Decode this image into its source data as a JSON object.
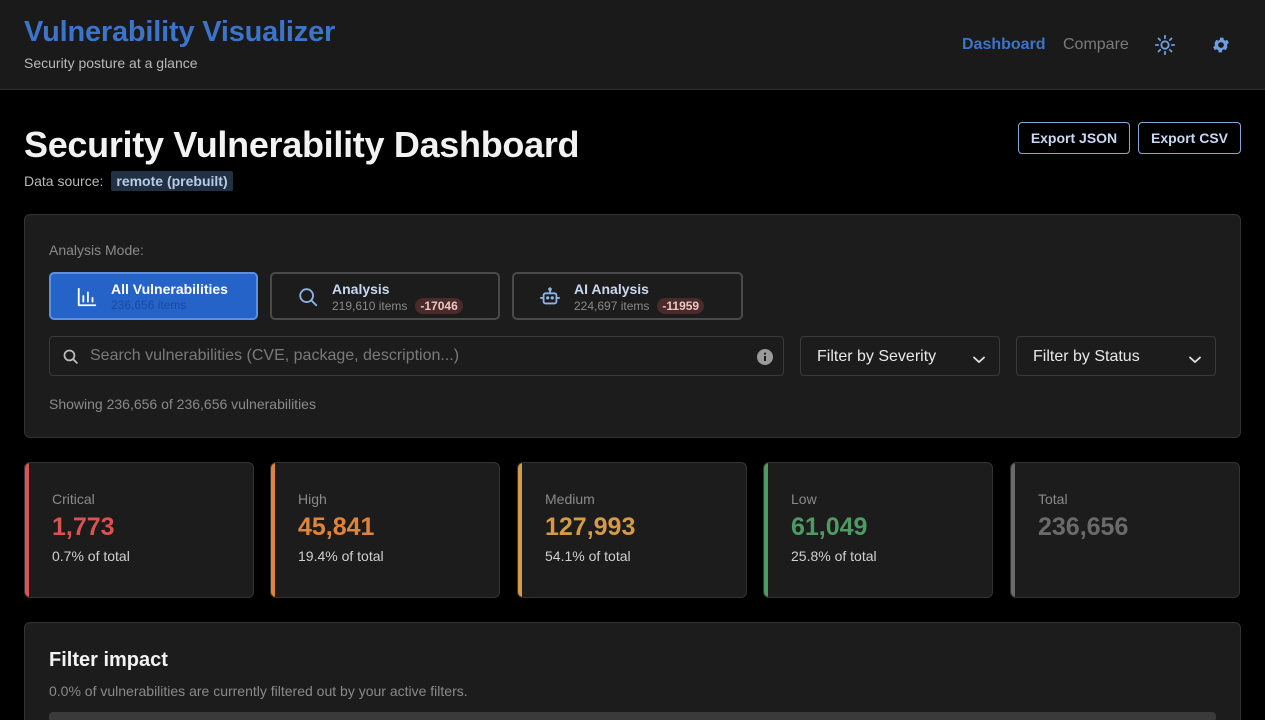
{
  "header": {
    "title": "Vulnerability Visualizer",
    "subtitle": "Security posture at a glance",
    "nav": {
      "dashboard": "Dashboard",
      "compare": "Compare"
    },
    "icons": [
      "sun-icon",
      "gear-icon"
    ]
  },
  "page": {
    "title": "Security Vulnerability Dashboard",
    "source_label": "Data source:",
    "source_value": "remote (prebuilt)",
    "export_json": "Export JSON",
    "export_csv": "Export CSV"
  },
  "controls": {
    "mode_label": "Analysis Mode:",
    "modes": [
      {
        "title": "All Vulnerabilities",
        "count": "236,656 items",
        "delta": "",
        "icon": "bar-chart-icon",
        "active": true
      },
      {
        "title": "Analysis",
        "count": "219,610 items",
        "delta": "-17046",
        "icon": "search-icon",
        "active": false
      },
      {
        "title": "AI Analysis",
        "count": "224,697 items",
        "delta": "-11959",
        "icon": "robot-icon",
        "active": false
      }
    ],
    "search_placeholder": "Search vulnerabilities (CVE, package, description...)",
    "search_value": "",
    "severity_filter": "Filter by Severity",
    "status_filter": "Filter by Status",
    "showing": "Showing 236,656 of 236,656 vulnerabilities"
  },
  "stats": [
    {
      "label": "Critical",
      "value": "1,773",
      "pct": "0.7% of total",
      "color": "#d9534f"
    },
    {
      "label": "High",
      "value": "45,841",
      "pct": "19.4% of total",
      "color": "#e0843a"
    },
    {
      "label": "Medium",
      "value": "127,993",
      "pct": "54.1% of total",
      "color": "#d49a45"
    },
    {
      "label": "Low",
      "value": "61,049",
      "pct": "25.8% of total",
      "color": "#4f9a63"
    },
    {
      "label": "Total",
      "value": "236,656",
      "pct": "",
      "color": "#6a6a6a"
    }
  ],
  "impact": {
    "title": "Filter impact",
    "description": "0.0% of vulnerabilities are currently filtered out by your active filters.",
    "filtered_fraction": 0.0
  },
  "colors": {
    "accent": "#3b74c9",
    "critical": "#d9534f",
    "high": "#e0843a",
    "medium": "#d49a45",
    "low": "#4f9a63"
  }
}
